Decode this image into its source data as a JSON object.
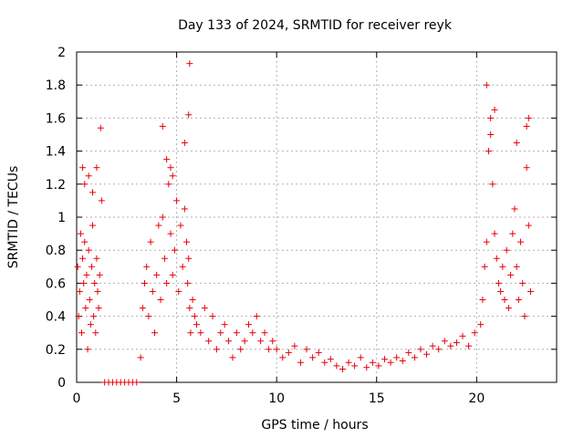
{
  "chart_data": {
    "type": "scatter",
    "title": "Day 133 of 2024, SRMTID for receiver reyk",
    "xlabel": "GPS time / hours",
    "ylabel": "SRMTID / TECUs",
    "xlim": [
      0,
      24
    ],
    "ylim": [
      0,
      2
    ],
    "x_ticks": [
      0,
      5,
      10,
      15,
      20
    ],
    "x_tick_labels": [
      "0",
      "5",
      "10",
      "15",
      "20"
    ],
    "y_ticks": [
      0,
      0.2,
      0.4,
      0.6,
      0.8,
      1,
      1.2,
      1.4,
      1.6,
      1.8,
      2
    ],
    "y_tick_labels": [
      "0",
      "0.2",
      "0.4",
      "0.6",
      "0.8",
      "1",
      "1.2",
      "1.4",
      "1.6",
      "1.8",
      "2"
    ],
    "grid": true,
    "marker": "+",
    "color": "#e8000b",
    "series": [
      {
        "name": "SRMTID",
        "x": [
          0.05,
          0.1,
          0.15,
          0.2,
          0.25,
          0.3,
          0.35,
          0.4,
          0.45,
          0.5,
          0.55,
          0.6,
          0.65,
          0.7,
          0.75,
          0.8,
          0.85,
          0.9,
          0.95,
          1.0,
          1.05,
          1.1,
          1.15,
          0.3,
          0.4,
          0.6,
          0.8,
          1.0,
          1.2,
          1.25,
          1.4,
          1.6,
          1.8,
          2.0,
          2.2,
          2.4,
          2.6,
          2.8,
          3.0,
          3.2,
          3.3,
          3.4,
          3.5,
          3.6,
          3.7,
          3.8,
          3.9,
          4.0,
          4.1,
          4.2,
          4.3,
          4.4,
          4.5,
          4.6,
          4.7,
          4.8,
          4.9,
          5.0,
          5.1,
          5.2,
          5.3,
          5.4,
          5.5,
          5.55,
          5.6,
          5.65,
          5.7,
          5.8,
          5.9,
          4.3,
          4.5,
          4.7,
          4.8,
          5.4,
          5.6,
          5.65,
          6.0,
          6.2,
          6.4,
          6.6,
          6.8,
          7.0,
          7.2,
          7.4,
          7.6,
          7.8,
          8.0,
          8.2,
          8.4,
          8.6,
          8.8,
          9.0,
          9.2,
          9.4,
          9.6,
          9.8,
          10.0,
          10.3,
          10.6,
          10.9,
          11.2,
          11.5,
          11.8,
          12.1,
          12.4,
          12.7,
          13.0,
          13.3,
          13.6,
          13.9,
          14.2,
          14.5,
          14.8,
          15.1,
          15.4,
          15.7,
          16.0,
          16.3,
          16.6,
          16.9,
          17.2,
          17.5,
          17.8,
          18.1,
          18.4,
          18.7,
          19.0,
          19.3,
          19.6,
          19.9,
          20.2,
          20.3,
          20.4,
          20.5,
          20.6,
          20.7,
          20.8,
          20.9,
          21.0,
          21.1,
          21.2,
          21.3,
          21.4,
          21.5,
          21.6,
          21.7,
          21.8,
          21.9,
          22.0,
          22.1,
          22.2,
          22.3,
          22.4,
          22.5,
          22.6,
          22.7,
          20.5,
          20.7,
          20.9,
          22.0,
          22.5,
          22.6
        ],
        "y": [
          0.7,
          0.4,
          0.55,
          0.9,
          0.3,
          0.75,
          0.6,
          0.85,
          0.45,
          0.65,
          0.2,
          0.8,
          0.5,
          0.35,
          0.7,
          0.95,
          0.4,
          0.6,
          0.3,
          0.75,
          0.55,
          0.45,
          0.65,
          1.3,
          1.2,
          1.25,
          1.15,
          1.3,
          1.54,
          1.1,
          0,
          0,
          0,
          0,
          0,
          0,
          0,
          0,
          0,
          0.15,
          0.45,
          0.6,
          0.7,
          0.4,
          0.85,
          0.55,
          0.3,
          0.65,
          0.95,
          0.5,
          1.0,
          0.75,
          0.6,
          1.2,
          0.9,
          0.65,
          0.8,
          1.1,
          0.55,
          0.95,
          0.7,
          1.05,
          0.85,
          0.6,
          0.75,
          0.45,
          0.3,
          0.5,
          0.4,
          1.55,
          1.35,
          1.3,
          1.25,
          1.45,
          1.62,
          1.93,
          0.35,
          0.3,
          0.45,
          0.25,
          0.4,
          0.2,
          0.3,
          0.35,
          0.25,
          0.15,
          0.3,
          0.2,
          0.25,
          0.35,
          0.3,
          0.4,
          0.25,
          0.3,
          0.2,
          0.25,
          0.2,
          0.15,
          0.18,
          0.22,
          0.12,
          0.2,
          0.15,
          0.18,
          0.12,
          0.14,
          0.1,
          0.08,
          0.12,
          0.1,
          0.15,
          0.09,
          0.12,
          0.1,
          0.14,
          0.12,
          0.15,
          0.13,
          0.18,
          0.15,
          0.2,
          0.17,
          0.22,
          0.2,
          0.25,
          0.22,
          0.24,
          0.28,
          0.22,
          0.3,
          0.35,
          0.5,
          0.7,
          0.85,
          1.4,
          1.6,
          1.2,
          0.9,
          0.75,
          0.6,
          0.55,
          0.7,
          0.5,
          0.8,
          0.45,
          0.65,
          0.9,
          1.05,
          0.7,
          0.5,
          0.85,
          0.6,
          0.4,
          1.3,
          0.95,
          0.55,
          1.8,
          1.5,
          1.65,
          1.45,
          1.55,
          1.6
        ]
      }
    ]
  }
}
